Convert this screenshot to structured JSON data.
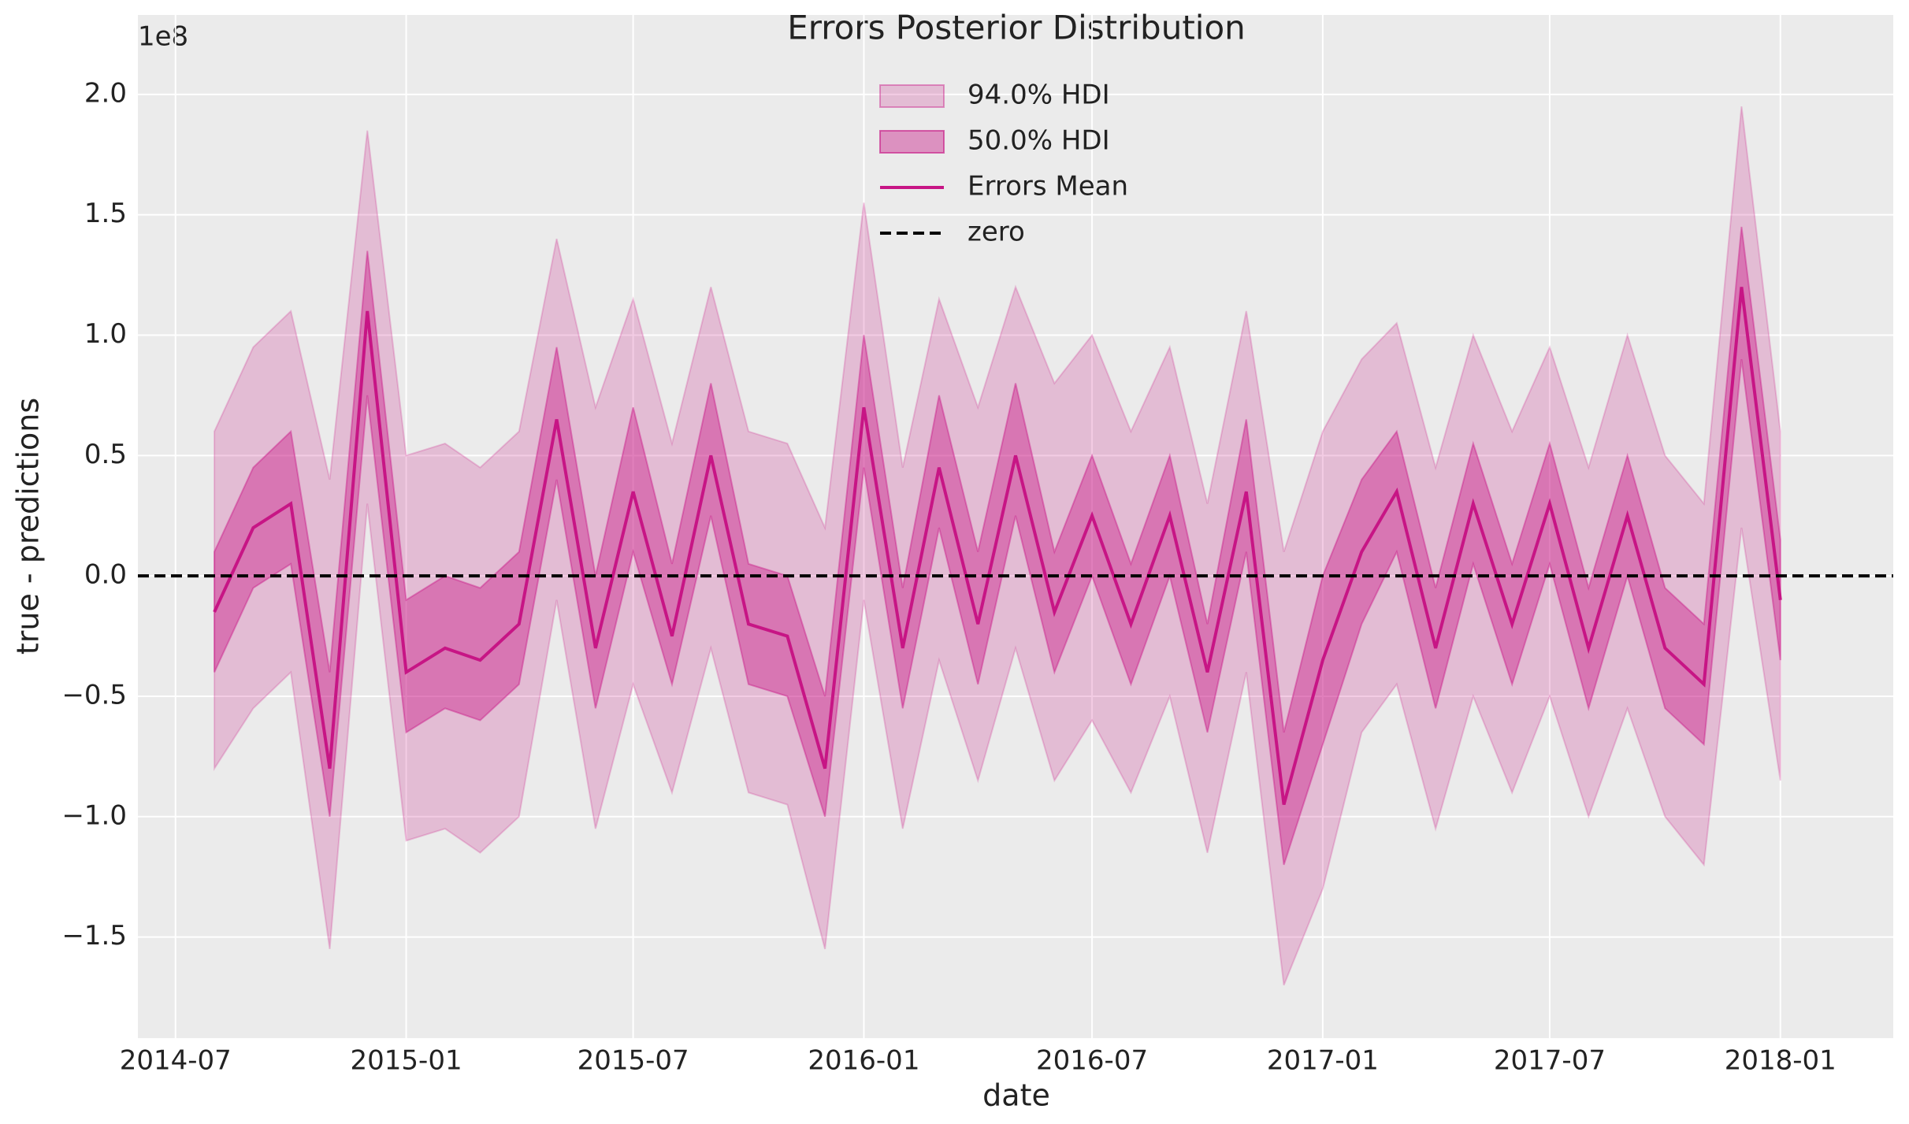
{
  "chart_data": {
    "type": "band-line",
    "title": "Errors Posterior Distribution",
    "x_label": "date",
    "y_label": "true - predictions",
    "y_offset_label": "1e8",
    "x": [
      "2014-08",
      "2014-09",
      "2014-10",
      "2014-11",
      "2014-12",
      "2015-01",
      "2015-02",
      "2015-03",
      "2015-04",
      "2015-05",
      "2015-06",
      "2015-07",
      "2015-08",
      "2015-09",
      "2015-10",
      "2015-11",
      "2015-12",
      "2016-01",
      "2016-02",
      "2016-03",
      "2016-04",
      "2016-05",
      "2016-06",
      "2016-07",
      "2016-08",
      "2016-09",
      "2016-10",
      "2016-11",
      "2016-12",
      "2017-01",
      "2017-02",
      "2017-03",
      "2017-04",
      "2017-05",
      "2017-06",
      "2017-07",
      "2017-08",
      "2017-09",
      "2017-10",
      "2017-11",
      "2017-12",
      "2018-01"
    ],
    "bands": [
      {
        "name": "94.0% HDI",
        "color": "#c71585",
        "opacity": 0.22,
        "low": [
          -0.8,
          -0.55,
          -0.4,
          -1.55,
          0.3,
          -1.1,
          -1.05,
          -1.15,
          -1.0,
          -0.1,
          -1.05,
          -0.45,
          -0.9,
          -0.3,
          -0.9,
          -0.95,
          -1.55,
          -0.1,
          -1.05,
          -0.35,
          -0.85,
          -0.3,
          -0.85,
          -0.6,
          -0.9,
          -0.5,
          -1.15,
          -0.4,
          -1.7,
          -1.3,
          -0.65,
          -0.45,
          -1.05,
          -0.5,
          -0.9,
          -0.5,
          -1.0,
          -0.55,
          -1.0,
          -1.2,
          0.2,
          -0.85
        ],
        "high": [
          0.6,
          0.95,
          1.1,
          0.4,
          1.85,
          0.5,
          0.55,
          0.45,
          0.6,
          1.4,
          0.7,
          1.15,
          0.55,
          1.2,
          0.6,
          0.55,
          0.2,
          1.55,
          0.45,
          1.15,
          0.7,
          1.2,
          0.8,
          1.0,
          0.6,
          0.95,
          0.3,
          1.1,
          0.1,
          0.6,
          0.9,
          1.05,
          0.45,
          1.0,
          0.6,
          0.95,
          0.45,
          1.0,
          0.5,
          0.3,
          1.95,
          0.6
        ]
      },
      {
        "name": "50.0% HDI",
        "color": "#c71585",
        "opacity": 0.42,
        "low": [
          -0.4,
          -0.05,
          0.05,
          -1.0,
          0.75,
          -0.65,
          -0.55,
          -0.6,
          -0.45,
          0.4,
          -0.55,
          0.1,
          -0.45,
          0.25,
          -0.45,
          -0.5,
          -1.0,
          0.45,
          -0.55,
          0.2,
          -0.45,
          0.25,
          -0.4,
          0.0,
          -0.45,
          0.0,
          -0.65,
          0.1,
          -1.2,
          -0.7,
          -0.2,
          0.1,
          -0.55,
          0.05,
          -0.45,
          0.05,
          -0.55,
          0.0,
          -0.55,
          -0.7,
          0.9,
          -0.35
        ],
        "high": [
          0.1,
          0.45,
          0.6,
          -0.4,
          1.35,
          -0.1,
          0.0,
          -0.05,
          0.1,
          0.95,
          0.0,
          0.7,
          0.05,
          0.8,
          0.05,
          0.0,
          -0.5,
          1.0,
          -0.05,
          0.75,
          0.1,
          0.8,
          0.1,
          0.5,
          0.05,
          0.5,
          -0.2,
          0.65,
          -0.65,
          0.0,
          0.4,
          0.6,
          -0.05,
          0.55,
          0.05,
          0.55,
          -0.05,
          0.5,
          -0.05,
          -0.2,
          1.45,
          0.15
        ]
      }
    ],
    "series": [
      {
        "name": "Errors Mean",
        "color": "#c71585",
        "values": [
          -0.15,
          0.2,
          0.3,
          -0.8,
          1.1,
          -0.4,
          -0.3,
          -0.35,
          -0.2,
          0.65,
          -0.3,
          0.35,
          -0.25,
          0.5,
          -0.2,
          -0.25,
          -0.8,
          0.7,
          -0.3,
          0.45,
          -0.2,
          0.5,
          -0.15,
          0.25,
          -0.2,
          0.25,
          -0.4,
          0.35,
          -0.95,
          -0.35,
          0.1,
          0.35,
          -0.3,
          0.3,
          -0.2,
          0.3,
          -0.3,
          0.25,
          -0.3,
          -0.45,
          1.2,
          -0.1
        ]
      }
    ],
    "reference_line": {
      "name": "zero",
      "value": 0,
      "color": "#000000"
    },
    "xlim": [
      "2014-06",
      "2018-04"
    ],
    "xticks": [
      "2014-07",
      "2015-01",
      "2015-07",
      "2016-01",
      "2016-07",
      "2017-01",
      "2017-07",
      "2018-01"
    ],
    "ylim": [
      -1.92,
      2.33
    ],
    "yticks": [
      {
        "value": -1.5,
        "label": "−1.5"
      },
      {
        "value": -1.0,
        "label": "−1.0"
      },
      {
        "value": -0.5,
        "label": "−0.5"
      },
      {
        "value": 0,
        "label": "0.0"
      },
      0.5,
      {
        "value": 1,
        "label": "1.0"
      },
      1.5,
      {
        "value": 2,
        "label": "2.0"
      }
    ],
    "grid": true,
    "legend": "top-center"
  }
}
